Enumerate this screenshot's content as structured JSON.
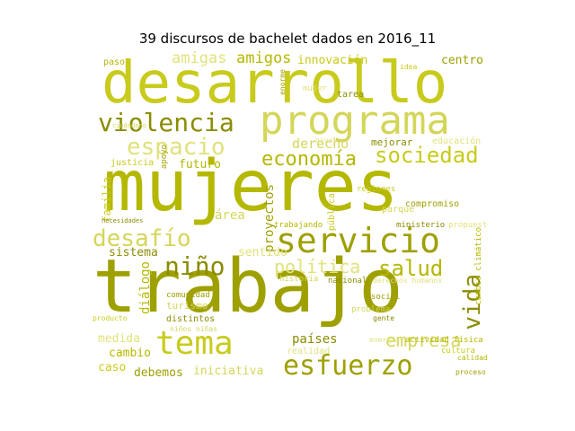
{
  "title": "39 discursos de bachelet dados en 2016_11",
  "colors": {
    "palette": [
      "#b5b800",
      "#c8cb1c",
      "#9ea000",
      "#d4d65a",
      "#8a8c00",
      "#e0e27a"
    ]
  },
  "words": [
    {
      "text": "desarrollo",
      "size": 64,
      "rank": 2,
      "vertical": false
    },
    {
      "text": "programa",
      "size": 44,
      "rank": 4,
      "vertical": false
    },
    {
      "text": "mujeres",
      "size": 78,
      "rank": 1,
      "vertical": false
    },
    {
      "text": "trabajo",
      "size": 82,
      "rank": 3,
      "vertical": false
    },
    {
      "text": "violencia",
      "size": 28,
      "rank": 5,
      "vertical": false
    },
    {
      "text": "espacio",
      "size": 26,
      "rank": 6,
      "vertical": false
    },
    {
      "text": "economía",
      "size": 22,
      "rank": 7,
      "vertical": false
    },
    {
      "text": "sociedad",
      "size": 24,
      "rank": 8,
      "vertical": false
    },
    {
      "text": "servicio",
      "size": 38,
      "rank": 9,
      "vertical": false
    },
    {
      "text": "desafío",
      "size": 26,
      "rank": 10,
      "vertical": false
    },
    {
      "text": "niño",
      "size": 28,
      "rank": 11,
      "vertical": false
    },
    {
      "text": "política",
      "size": 20,
      "rank": 12,
      "vertical": false
    },
    {
      "text": "salud",
      "size": 24,
      "rank": 13,
      "vertical": false
    },
    {
      "text": "tema",
      "size": 36,
      "rank": 14,
      "vertical": false
    },
    {
      "text": "esfuerzo",
      "size": 30,
      "rank": 15,
      "vertical": false
    },
    {
      "text": "empresa",
      "size": 20,
      "rank": 16,
      "vertical": false
    },
    {
      "text": "vida",
      "size": 26,
      "rank": 17,
      "vertical": true
    },
    {
      "text": "amigas",
      "size": 17,
      "rank": 18,
      "vertical": false
    },
    {
      "text": "amigos",
      "size": 17,
      "rank": 19,
      "vertical": false
    },
    {
      "text": "innovación",
      "size": 13,
      "rank": 20,
      "vertical": false
    },
    {
      "text": "centro",
      "size": 13,
      "rank": 21,
      "vertical": false
    },
    {
      "text": "derecho",
      "size": 15,
      "rank": 22,
      "vertical": false
    },
    {
      "text": "mejorar",
      "size": 11,
      "rank": 23,
      "vertical": false
    },
    {
      "text": "educación",
      "size": 10,
      "rank": 24,
      "vertical": false
    },
    {
      "text": "futuro",
      "size": 13,
      "rank": 25,
      "vertical": false
    },
    {
      "text": "familia",
      "size": 12,
      "rank": 26,
      "vertical": true
    },
    {
      "text": "proyectos",
      "size": 14,
      "rank": 27,
      "vertical": true
    },
    {
      "text": "área",
      "size": 14,
      "rank": 28,
      "vertical": false
    },
    {
      "text": "sistema",
      "size": 13,
      "rank": 29,
      "vertical": false
    },
    {
      "text": "sentido",
      "size": 13,
      "rank": 30,
      "vertical": false
    },
    {
      "text": "diálogo",
      "size": 14,
      "rank": 31,
      "vertical": true
    },
    {
      "text": "regiones",
      "size": 9,
      "rank": 32,
      "vertical": false
    },
    {
      "text": "compromiso",
      "size": 10,
      "rank": 33,
      "vertical": false
    },
    {
      "text": "parque",
      "size": 10,
      "rank": 34,
      "vertical": false
    },
    {
      "text": "ministerio",
      "size": 9,
      "rank": 35,
      "vertical": false
    },
    {
      "text": "propuesta",
      "size": 9,
      "rank": 36,
      "vertical": false
    },
    {
      "text": "trabajando",
      "size": 9,
      "rank": 37,
      "vertical": false
    },
    {
      "text": "pública",
      "size": 10,
      "rank": 38,
      "vertical": true
    },
    {
      "text": "comunidad",
      "size": 9,
      "rank": 39,
      "vertical": false
    },
    {
      "text": "turismo",
      "size": 11,
      "rank": 40,
      "vertical": false
    },
    {
      "text": "distintos",
      "size": 10,
      "rank": 41,
      "vertical": false
    },
    {
      "text": "medida",
      "size": 13,
      "rank": 42,
      "vertical": false
    },
    {
      "text": "cambio",
      "size": 13,
      "rank": 43,
      "vertical": false
    },
    {
      "text": "caso",
      "size": 13,
      "rank": 44,
      "vertical": false
    },
    {
      "text": "debemos",
      "size": 13,
      "rank": 45,
      "vertical": false
    },
    {
      "text": "iniciativa",
      "size": 13,
      "rank": 46,
      "vertical": false
    },
    {
      "text": "países",
      "size": 14,
      "rank": 47,
      "vertical": false
    },
    {
      "text": "realidad",
      "size": 10,
      "rank": 48,
      "vertical": false
    },
    {
      "text": "actividad física",
      "size": 9,
      "rank": 49,
      "vertical": false
    },
    {
      "text": "cultura",
      "size": 9,
      "rank": 50,
      "vertical": false
    },
    {
      "text": "proceso",
      "size": 8,
      "rank": 51,
      "vertical": false
    },
    {
      "text": "historia",
      "size": 9,
      "rank": 52,
      "vertical": false
    },
    {
      "text": "nacional",
      "size": 9,
      "rank": 53,
      "vertical": false
    },
    {
      "text": "derechos humanos",
      "size": 8,
      "rank": 54,
      "vertical": false
    },
    {
      "text": "cambio climático",
      "size": 9,
      "rank": 55,
      "vertical": true
    },
    {
      "text": "justicia",
      "size": 10,
      "rank": 56,
      "vertical": false
    },
    {
      "text": "apoyo",
      "size": 9,
      "rank": 57,
      "vertical": true
    },
    {
      "text": "niños niñas",
      "size": 8,
      "rank": 58,
      "vertical": false
    },
    {
      "text": "tarea",
      "size": 10,
      "rank": 59,
      "vertical": false
    },
    {
      "text": "mujer",
      "size": 9,
      "rank": 60,
      "vertical": false
    },
    {
      "text": "paso",
      "size": 10,
      "rank": 61,
      "vertical": false
    },
    {
      "text": "idea",
      "size": 8,
      "rank": 62,
      "vertical": false
    },
    {
      "text": "social",
      "size": 9,
      "rank": 63,
      "vertical": false
    },
    {
      "text": "problema",
      "size": 9,
      "rank": 64,
      "vertical": false
    },
    {
      "text": "gente",
      "size": 8,
      "rank": 65,
      "vertical": false
    },
    {
      "text": "energía",
      "size": 8,
      "rank": 66,
      "vertical": false
    },
    {
      "text": "calidad",
      "size": 8,
      "rank": 67,
      "vertical": false
    },
    {
      "text": "producto",
      "size": 8,
      "rank": 68,
      "vertical": false
    },
    {
      "text": "enorme",
      "size": 8,
      "rank": 69,
      "vertical": true
    },
    {
      "text": "ciudadano",
      "size": 7,
      "rank": 70,
      "vertical": false
    },
    {
      "text": "necesidades",
      "size": 7,
      "rank": 71,
      "vertical": false
    },
    {
      "text": "nivel",
      "size": 8,
      "rank": 72,
      "vertical": false
    }
  ]
}
